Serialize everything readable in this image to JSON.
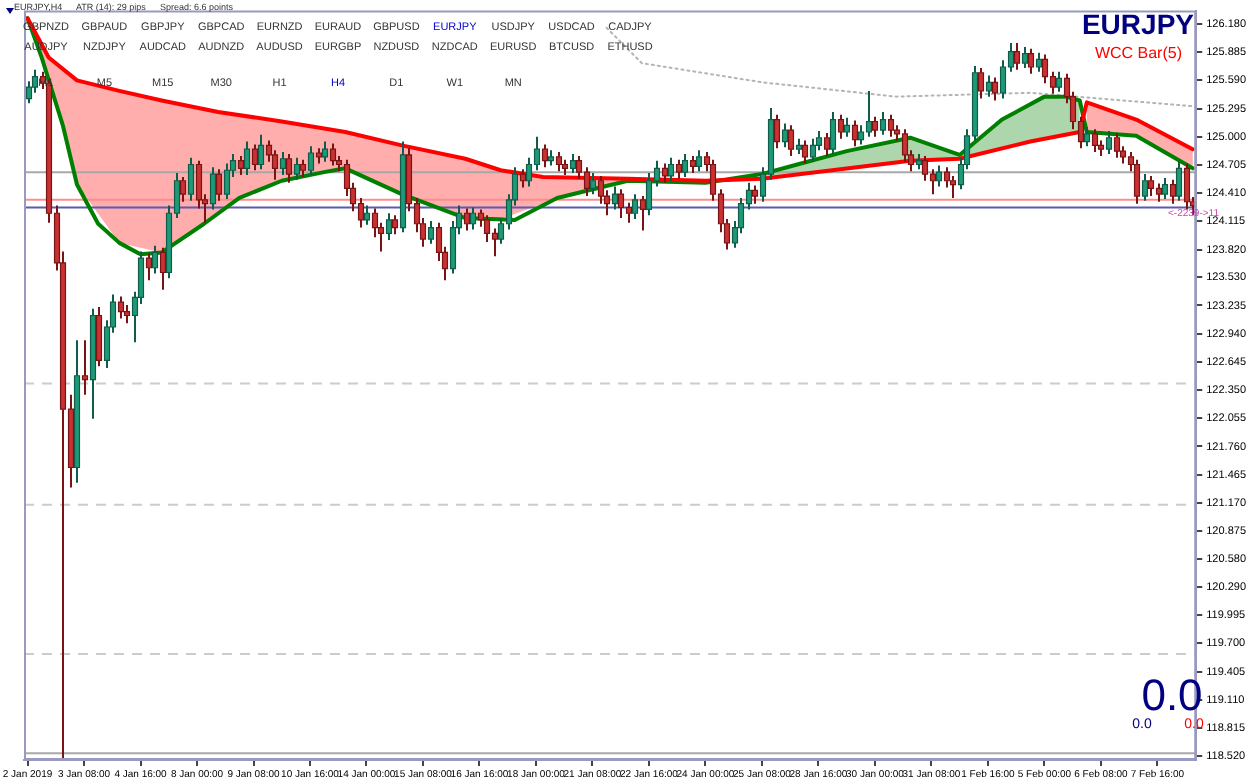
{
  "chart_data": {
    "type": "candlestick",
    "title": "EURJPY",
    "subtitle": "WCC Bar(5)",
    "categories": [
      "2 Jan 2019",
      null,
      null,
      null,
      null,
      null,
      null,
      null,
      "3 Jan 08:00",
      null,
      null,
      null,
      null,
      null,
      null,
      null,
      "4 Jan 16:00",
      null,
      null,
      null,
      null,
      null,
      null,
      null,
      "8 Jan 00:00",
      null,
      null,
      null,
      null,
      null,
      null,
      null,
      "9 Jan 08:00",
      null,
      null,
      null,
      null,
      null,
      null,
      null,
      "10 Jan 16:00",
      null,
      null,
      null,
      null,
      null,
      null,
      null,
      "14 Jan 00:00",
      null,
      null,
      null,
      null,
      null,
      null,
      null,
      "15 Jan 08:00",
      null,
      null,
      null,
      null,
      null,
      null,
      null,
      "16 Jan 16:00",
      null,
      null,
      null,
      null,
      null,
      null,
      null,
      "18 Jan 00:00",
      null,
      null,
      null,
      null,
      null,
      null,
      null,
      "21 Jan 08:00",
      null,
      null,
      null,
      null,
      null,
      null,
      null,
      "22 Jan 16:00",
      null,
      null,
      null,
      null,
      null,
      null,
      null,
      "24 Jan 00:00",
      null,
      null,
      null,
      null,
      null,
      null,
      null,
      "25 Jan 08:00",
      null,
      null,
      null,
      null,
      null,
      null,
      null,
      "28 Jan 16:00",
      null,
      null,
      null,
      null,
      null,
      null,
      null,
      "30 Jan 00:00",
      null,
      null,
      null,
      null,
      null,
      null,
      null,
      "31 Jan 08:00",
      null,
      null,
      null,
      null,
      null,
      null,
      null,
      "1 Feb 16:00",
      null,
      null,
      null,
      null,
      null,
      null,
      null,
      "5 Feb 00:00",
      null,
      null,
      null,
      null,
      null,
      null,
      null,
      "6 Feb 08:00",
      null,
      null,
      null,
      null,
      null,
      null,
      null,
      "7 Feb 16:00",
      null,
      null,
      null,
      null,
      null
    ],
    "ohlc": [
      [
        125.4,
        125.58,
        125.35,
        125.52
      ],
      [
        125.52,
        125.7,
        125.46,
        125.63
      ],
      [
        125.63,
        125.68,
        125.5,
        125.56
      ],
      [
        125.56,
        125.6,
        124.1,
        124.2
      ],
      [
        124.2,
        124.28,
        123.6,
        123.68
      ],
      [
        123.68,
        123.8,
        118.5,
        122.15
      ],
      [
        122.15,
        122.3,
        121.33,
        121.54
      ],
      [
        121.54,
        122.87,
        121.38,
        122.5
      ],
      [
        122.5,
        122.87,
        122.3,
        122.46
      ],
      [
        122.46,
        123.2,
        122.05,
        123.13
      ],
      [
        123.13,
        123.22,
        122.6,
        122.66
      ],
      [
        122.66,
        123.08,
        122.58,
        123.01
      ],
      [
        123.01,
        123.35,
        122.95,
        123.27
      ],
      [
        123.27,
        123.33,
        123.1,
        123.17
      ],
      [
        123.17,
        123.24,
        123.05,
        123.13
      ],
      [
        123.13,
        123.38,
        122.85,
        123.32
      ],
      [
        123.32,
        123.8,
        123.25,
        123.73
      ],
      [
        123.73,
        123.78,
        123.5,
        123.63
      ],
      [
        123.63,
        123.86,
        123.57,
        123.79
      ],
      [
        123.79,
        123.84,
        123.4,
        123.58
      ],
      [
        123.58,
        124.28,
        123.52,
        124.2
      ],
      [
        124.2,
        124.62,
        124.15,
        124.54
      ],
      [
        124.54,
        124.58,
        124.32,
        124.4
      ],
      [
        124.4,
        124.78,
        124.33,
        124.71
      ],
      [
        124.71,
        124.75,
        124.25,
        124.34
      ],
      [
        124.34,
        124.4,
        124.1,
        124.3
      ],
      [
        124.3,
        124.68,
        124.24,
        124.61
      ],
      [
        124.61,
        124.66,
        124.33,
        124.4
      ],
      [
        124.4,
        124.72,
        124.35,
        124.65
      ],
      [
        124.65,
        124.82,
        124.58,
        124.75
      ],
      [
        124.75,
        124.8,
        124.6,
        124.67
      ],
      [
        124.67,
        124.95,
        124.6,
        124.87
      ],
      [
        124.87,
        124.92,
        124.65,
        124.71
      ],
      [
        124.71,
        125.02,
        124.66,
        124.91
      ],
      [
        124.91,
        124.96,
        124.74,
        124.81
      ],
      [
        124.81,
        124.86,
        124.55,
        124.67
      ],
      [
        124.67,
        124.84,
        124.6,
        124.77
      ],
      [
        124.77,
        124.82,
        124.52,
        124.61
      ],
      [
        124.61,
        124.78,
        124.55,
        124.71
      ],
      [
        124.71,
        124.76,
        124.58,
        124.65
      ],
      [
        124.65,
        124.9,
        124.6,
        124.83
      ],
      [
        124.83,
        124.88,
        124.72,
        124.79
      ],
      [
        124.79,
        124.95,
        124.74,
        124.87
      ],
      [
        124.87,
        124.93,
        124.7,
        124.75
      ],
      [
        124.75,
        124.8,
        124.64,
        124.71
      ],
      [
        124.71,
        124.76,
        124.38,
        124.46
      ],
      [
        124.46,
        124.52,
        124.22,
        124.3
      ],
      [
        124.3,
        124.36,
        124.05,
        124.13
      ],
      [
        124.13,
        124.28,
        124.08,
        124.2
      ],
      [
        124.2,
        124.25,
        123.95,
        124.05
      ],
      [
        124.05,
        124.1,
        123.8,
        123.99
      ],
      [
        123.99,
        124.2,
        123.92,
        124.13
      ],
      [
        124.13,
        124.18,
        123.98,
        124.05
      ],
      [
        124.05,
        124.95,
        124.0,
        124.81
      ],
      [
        124.81,
        124.88,
        124.22,
        124.3
      ],
      [
        124.3,
        124.36,
        124.0,
        124.09
      ],
      [
        124.09,
        124.15,
        123.85,
        123.93
      ],
      [
        123.93,
        124.12,
        123.88,
        124.05
      ],
      [
        124.05,
        124.1,
        123.7,
        123.79
      ],
      [
        123.79,
        123.85,
        123.5,
        123.62
      ],
      [
        123.62,
        124.12,
        123.57,
        124.05
      ],
      [
        124.05,
        124.28,
        123.98,
        124.2
      ],
      [
        124.2,
        124.25,
        124.02,
        124.09
      ],
      [
        124.09,
        124.26,
        124.03,
        124.2
      ],
      [
        124.2,
        124.24,
        124.06,
        124.13
      ],
      [
        124.13,
        124.18,
        123.9,
        123.99
      ],
      [
        123.99,
        124.04,
        123.75,
        123.93
      ],
      [
        123.93,
        124.15,
        123.88,
        124.09
      ],
      [
        124.09,
        124.4,
        124.03,
        124.34
      ],
      [
        124.34,
        124.68,
        124.28,
        124.61
      ],
      [
        124.61,
        124.66,
        124.47,
        124.54
      ],
      [
        124.54,
        124.78,
        124.48,
        124.71
      ],
      [
        124.71,
        125.0,
        124.65,
        124.87
      ],
      [
        124.87,
        124.92,
        124.68,
        124.75
      ],
      [
        124.75,
        124.86,
        124.7,
        124.79
      ],
      [
        124.79,
        124.84,
        124.64,
        124.71
      ],
      [
        124.71,
        124.76,
        124.6,
        124.67
      ],
      [
        124.67,
        124.82,
        124.62,
        124.75
      ],
      [
        124.75,
        124.8,
        124.56,
        124.63
      ],
      [
        124.63,
        124.68,
        124.38,
        124.46
      ],
      [
        124.46,
        124.62,
        124.4,
        124.54
      ],
      [
        124.54,
        124.59,
        124.3,
        124.38
      ],
      [
        124.38,
        124.44,
        124.18,
        124.3
      ],
      [
        124.3,
        124.48,
        124.24,
        124.4
      ],
      [
        124.4,
        124.45,
        124.15,
        124.26
      ],
      [
        124.26,
        124.31,
        124.1,
        124.2
      ],
      [
        124.2,
        124.4,
        124.14,
        124.34
      ],
      [
        124.34,
        124.38,
        124.02,
        124.24
      ],
      [
        124.24,
        124.62,
        124.18,
        124.54
      ],
      [
        124.54,
        124.75,
        124.48,
        124.67
      ],
      [
        124.67,
        124.72,
        124.52,
        124.59
      ],
      [
        124.59,
        124.78,
        124.53,
        124.71
      ],
      [
        124.71,
        124.76,
        124.56,
        124.63
      ],
      [
        124.63,
        124.82,
        124.58,
        124.75
      ],
      [
        124.75,
        124.8,
        124.62,
        124.69
      ],
      [
        124.69,
        124.86,
        124.64,
        124.79
      ],
      [
        124.79,
        124.84,
        124.64,
        124.71
      ],
      [
        124.71,
        124.76,
        124.33,
        124.4
      ],
      [
        124.4,
        124.45,
        124.0,
        124.09
      ],
      [
        124.09,
        124.14,
        123.82,
        123.89
      ],
      [
        123.89,
        124.12,
        123.84,
        124.05
      ],
      [
        124.05,
        124.36,
        123.99,
        124.3
      ],
      [
        124.3,
        124.52,
        124.24,
        124.44
      ],
      [
        124.44,
        124.49,
        124.3,
        124.38
      ],
      [
        124.38,
        124.68,
        124.32,
        124.61
      ],
      [
        124.61,
        125.3,
        124.55,
        125.18
      ],
      [
        125.18,
        125.23,
        124.88,
        124.95
      ],
      [
        124.95,
        125.14,
        124.89,
        125.07
      ],
      [
        125.07,
        125.12,
        124.8,
        124.87
      ],
      [
        124.87,
        124.98,
        124.82,
        124.91
      ],
      [
        124.91,
        124.96,
        124.72,
        124.79
      ],
      [
        124.79,
        124.98,
        124.74,
        124.91
      ],
      [
        124.91,
        125.06,
        124.86,
        124.99
      ],
      [
        124.99,
        125.04,
        124.8,
        124.87
      ],
      [
        124.87,
        125.26,
        124.82,
        125.18
      ],
      [
        125.18,
        125.23,
        124.98,
        125.05
      ],
      [
        125.05,
        125.2,
        125.0,
        125.12
      ],
      [
        125.12,
        125.17,
        124.9,
        124.97
      ],
      [
        124.97,
        125.12,
        124.92,
        125.05
      ],
      [
        125.05,
        125.48,
        125.0,
        125.16
      ],
      [
        125.16,
        125.21,
        125.0,
        125.07
      ],
      [
        125.07,
        125.26,
        125.02,
        125.18
      ],
      [
        125.18,
        125.23,
        125.0,
        125.07
      ],
      [
        125.07,
        125.12,
        124.96,
        125.03
      ],
      [
        125.03,
        125.08,
        124.74,
        124.81
      ],
      [
        124.81,
        124.86,
        124.64,
        124.71
      ],
      [
        124.71,
        124.82,
        124.66,
        124.75
      ],
      [
        124.75,
        124.8,
        124.54,
        124.61
      ],
      [
        124.61,
        124.66,
        124.4,
        124.54
      ],
      [
        124.54,
        124.7,
        124.48,
        124.63
      ],
      [
        124.63,
        124.68,
        124.47,
        124.54
      ],
      [
        124.54,
        124.59,
        124.36,
        124.5
      ],
      [
        124.5,
        124.78,
        124.45,
        124.71
      ],
      [
        124.71,
        125.08,
        124.66,
        125.01
      ],
      [
        125.01,
        125.74,
        124.96,
        125.67
      ],
      [
        125.67,
        125.72,
        125.4,
        125.48
      ],
      [
        125.48,
        125.64,
        125.42,
        125.57
      ],
      [
        125.57,
        125.62,
        125.38,
        125.46
      ],
      [
        125.46,
        125.8,
        125.4,
        125.73
      ],
      [
        125.73,
        125.98,
        125.68,
        125.89
      ],
      [
        125.89,
        125.98,
        125.7,
        125.77
      ],
      [
        125.77,
        125.94,
        125.72,
        125.87
      ],
      [
        125.87,
        125.92,
        125.66,
        125.73
      ],
      [
        125.73,
        125.88,
        125.68,
        125.81
      ],
      [
        125.81,
        125.86,
        125.56,
        125.63
      ],
      [
        125.63,
        125.68,
        125.45,
        125.52
      ],
      [
        125.52,
        125.68,
        125.47,
        125.61
      ],
      [
        125.61,
        125.66,
        125.35,
        125.42
      ],
      [
        125.42,
        125.47,
        125.08,
        125.16
      ],
      [
        125.16,
        125.21,
        124.88,
        124.95
      ],
      [
        124.95,
        125.1,
        124.9,
        125.03
      ],
      [
        125.03,
        125.08,
        124.84,
        124.91
      ],
      [
        124.91,
        124.96,
        124.8,
        124.87
      ],
      [
        124.87,
        125.06,
        124.82,
        124.99
      ],
      [
        124.99,
        125.04,
        124.78,
        124.85
      ],
      [
        124.85,
        124.9,
        124.72,
        124.79
      ],
      [
        124.79,
        124.84,
        124.64,
        124.71
      ],
      [
        124.71,
        124.76,
        124.3,
        124.38
      ],
      [
        124.38,
        124.61,
        124.33,
        124.54
      ],
      [
        124.54,
        124.59,
        124.38,
        124.46
      ],
      [
        124.46,
        124.51,
        124.32,
        124.4
      ],
      [
        124.4,
        124.57,
        124.35,
        124.5
      ],
      [
        124.5,
        124.55,
        124.3,
        124.38
      ],
      [
        124.38,
        124.74,
        124.33,
        124.67
      ],
      [
        124.67,
        124.72,
        124.24,
        124.32
      ],
      [
        124.32,
        124.37,
        124.18,
        124.28
      ]
    ],
    "series": [
      {
        "type": "line",
        "color": "#ff0000",
        "upper": [
          126.24,
          null,
          null,
          125.83,
          null,
          null,
          null,
          125.59,
          null,
          null,
          null,
          null,
          null,
          125.48,
          null,
          null,
          null,
          null,
          null,
          125.38,
          null,
          null,
          null,
          null,
          null,
          125.29,
          null,
          null,
          null,
          null,
          125.22,
          null,
          null,
          null,
          null,
          null,
          125.16,
          null,
          null,
          null,
          null,
          null,
          null,
          null,
          null,
          125.05,
          null,
          null,
          null,
          null,
          null,
          null,
          null,
          124.91,
          null,
          null,
          null,
          null,
          null,
          null,
          null,
          null,
          124.77,
          null,
          null,
          null,
          null,
          124.65,
          null,
          null,
          null,
          null,
          null,
          124.58,
          null,
          null,
          null,
          null,
          null,
          null,
          null,
          null,
          null,
          null,
          null,
          124.56,
          null,
          null,
          null,
          null,
          null,
          null,
          null,
          null,
          null,
          null,
          124.54,
          null,
          null,
          null,
          null,
          null,
          null,
          null,
          null,
          null,
          null,
          null,
          null,
          null,
          null,
          null,
          null,
          null,
          null,
          null,
          null,
          null,
          null,
          null,
          null,
          null,
          null,
          null,
          null,
          null,
          null,
          null,
          null,
          null,
          null,
          null,
          null,
          null,
          null,
          null,
          null,
          null,
          null,
          null,
          null,
          null,
          null,
          null,
          null,
          null,
          null,
          null,
          null,
          null,
          125.36,
          null,
          null,
          null,
          null,
          null,
          null,
          125.18,
          null,
          null,
          null,
          null,
          null,
          null,
          null,
          124.87
        ],
        "lower": [
          126.24,
          null,
          null,
          125.6,
          null,
          null,
          null,
          124.5,
          null,
          null,
          null,
          null,
          null,
          123.89,
          null,
          null,
          null,
          null,
          null,
          123.79,
          null,
          null,
          null,
          null,
          null,
          124.09,
          null,
          null,
          null,
          null,
          124.36,
          null,
          null,
          null,
          null,
          null,
          124.54,
          null,
          null,
          null,
          null,
          null,
          null,
          null,
          null,
          124.67,
          null,
          null,
          null,
          null,
          null,
          null,
          null,
          124.4,
          null,
          null,
          null,
          null,
          null,
          null,
          null,
          null,
          124.15,
          null,
          null,
          null,
          null,
          124.14,
          null,
          null,
          null,
          null,
          null,
          124.3,
          null,
          null,
          null,
          null,
          null,
          null,
          null,
          null,
          null,
          null,
          null,
          124.54,
          null,
          null,
          null,
          null,
          null,
          null,
          null,
          null,
          null,
          null,
          124.52,
          null,
          null,
          null,
          null,
          null,
          null,
          null,
          null,
          null,
          null,
          null,
          null,
          null,
          null,
          null,
          null,
          null,
          null,
          null,
          null,
          null,
          null,
          null,
          null,
          null,
          null,
          null,
          null,
          null,
          null,
          null,
          null,
          null,
          null,
          null,
          null,
          null,
          null,
          null,
          null,
          null,
          null,
          null,
          null,
          null,
          null,
          null,
          null,
          null,
          null,
          null,
          null,
          null,
          125.05,
          null,
          null,
          null,
          null,
          null,
          null,
          125.01,
          null,
          null,
          null,
          null,
          null,
          null,
          null,
          124.67
        ],
        "values": [
          126.24,
          null,
          null,
          125.83,
          null,
          null,
          null,
          125.59,
          null,
          null,
          null,
          null,
          null,
          125.48,
          null,
          null,
          null,
          null,
          null,
          125.38,
          null,
          null,
          null,
          null,
          null,
          null,
          null,
          125.26,
          null,
          null,
          null,
          null,
          null,
          null,
          null,
          null,
          125.16,
          null,
          null,
          null,
          null,
          null,
          null,
          null,
          null,
          125.05,
          null,
          null,
          null,
          null,
          null,
          null,
          null,
          124.91,
          null,
          null,
          null,
          null,
          null,
          null,
          null,
          null,
          124.77,
          null,
          null,
          null,
          null,
          124.65,
          null,
          null,
          null,
          null,
          null,
          124.58,
          null,
          null,
          null,
          null,
          null,
          null,
          null,
          null,
          null,
          null,
          null,
          124.56,
          null,
          null,
          null,
          null,
          null,
          null,
          null,
          null,
          null,
          null,
          124.54,
          null,
          null,
          null,
          null,
          null,
          null,
          null,
          124.56,
          null,
          null,
          null,
          null,
          null,
          null,
          null,
          null,
          null,
          null,
          null,
          null,
          null,
          null,
          null,
          null,
          null,
          null,
          null,
          null,
          124.75,
          null,
          null,
          null,
          null,
          null,
          null,
          124.77,
          null,
          null,
          null,
          null,
          null,
          null,
          null,
          null,
          null,
          124.95,
          null,
          null,
          null,
          null,
          null,
          null,
          125.05,
          125.36,
          null,
          null,
          null,
          null,
          null,
          null,
          125.18,
          null,
          null,
          null,
          null,
          null,
          null,
          null,
          124.87
        ]
      },
      {
        "type": "line",
        "color": "#008000",
        "upper": [
          null,
          null,
          null,
          null,
          null,
          null,
          null,
          null,
          null,
          null,
          null,
          null,
          null,
          null,
          null,
          null,
          null,
          null,
          null,
          null,
          null,
          null,
          null,
          null,
          null,
          null,
          null,
          null,
          null,
          null,
          null,
          null,
          null,
          null,
          null,
          null,
          null,
          null,
          null,
          null,
          null,
          null,
          null,
          null,
          null,
          null,
          null,
          null,
          null,
          null,
          null,
          null,
          null,
          null,
          null,
          null,
          null,
          null,
          null,
          null,
          null,
          null,
          null,
          null,
          null,
          null,
          null,
          null,
          null,
          null,
          null,
          null,
          null,
          null,
          null,
          null,
          null,
          null,
          null,
          null,
          null,
          null,
          null,
          null,
          null,
          null,
          null,
          null,
          null,
          null,
          null,
          null,
          null,
          null,
          null,
          null,
          null,
          null,
          null,
          null,
          null,
          null,
          null,
          null,
          124.61,
          null,
          null,
          null,
          null,
          124.71,
          null,
          null,
          null,
          null,
          null,
          null,
          124.85,
          null,
          null,
          null,
          null,
          null,
          null,
          null,
          null,
          124.99,
          null,
          null,
          null,
          null,
          null,
          null,
          124.81,
          null,
          null,
          null,
          null,
          null,
          125.18,
          null,
          null,
          null,
          null,
          null,
          125.42,
          null,
          null,
          null,
          null,
          125.38,
          null,
          null,
          null,
          null,
          null,
          null,
          null,
          null,
          null,
          null,
          null,
          null,
          null,
          null,
          null,
          null
        ],
        "lower": [
          null,
          null,
          null,
          null,
          null,
          null,
          null,
          null,
          null,
          null,
          null,
          null,
          null,
          null,
          null,
          null,
          null,
          null,
          null,
          null,
          null,
          null,
          null,
          null,
          null,
          null,
          null,
          null,
          null,
          null,
          null,
          null,
          null,
          null,
          null,
          null,
          null,
          null,
          null,
          null,
          null,
          null,
          null,
          null,
          null,
          null,
          null,
          null,
          null,
          null,
          null,
          null,
          null,
          null,
          null,
          null,
          null,
          null,
          null,
          null,
          null,
          null,
          null,
          null,
          null,
          null,
          null,
          null,
          null,
          null,
          null,
          null,
          null,
          null,
          null,
          null,
          null,
          null,
          null,
          null,
          null,
          null,
          null,
          null,
          null,
          null,
          null,
          null,
          null,
          null,
          null,
          null,
          null,
          null,
          null,
          null,
          null,
          null,
          null,
          null,
          null,
          null,
          null,
          null,
          124.56,
          null,
          null,
          null,
          null,
          124.6,
          null,
          null,
          null,
          null,
          null,
          null,
          124.66,
          null,
          null,
          null,
          null,
          null,
          null,
          null,
          null,
          124.75,
          null,
          null,
          null,
          null,
          null,
          null,
          124.77,
          null,
          null,
          null,
          null,
          null,
          124.88,
          null,
          null,
          null,
          null,
          null,
          124.99,
          null,
          null,
          null,
          null,
          125.05,
          null,
          null,
          null,
          null,
          null,
          null,
          null,
          null,
          null,
          null,
          null,
          null,
          null,
          null,
          null,
          null
        ],
        "values": [
          126.24,
          null,
          125.83,
          null,
          null,
          125.12,
          null,
          124.5,
          null,
          null,
          124.09,
          null,
          null,
          123.89,
          null,
          null,
          123.77,
          null,
          null,
          123.79,
          null,
          null,
          null,
          null,
          null,
          124.09,
          null,
          null,
          null,
          null,
          124.36,
          null,
          null,
          null,
          null,
          null,
          124.54,
          null,
          null,
          null,
          null,
          null,
          124.63,
          null,
          null,
          124.67,
          null,
          null,
          null,
          null,
          null,
          null,
          null,
          124.4,
          null,
          null,
          null,
          null,
          null,
          null,
          null,
          null,
          124.15,
          null,
          null,
          null,
          null,
          null,
          null,
          124.13,
          null,
          null,
          null,
          null,
          null,
          124.36,
          null,
          null,
          null,
          null,
          null,
          null,
          null,
          null,
          null,
          124.54,
          null,
          null,
          null,
          null,
          null,
          null,
          null,
          null,
          null,
          null,
          124.52,
          null,
          null,
          null,
          null,
          null,
          null,
          null,
          124.61,
          null,
          null,
          null,
          null,
          124.71,
          null,
          null,
          null,
          null,
          null,
          null,
          124.85,
          null,
          null,
          null,
          null,
          null,
          null,
          null,
          null,
          124.99,
          null,
          null,
          null,
          null,
          null,
          null,
          124.81,
          null,
          null,
          null,
          null,
          null,
          125.18,
          null,
          null,
          null,
          null,
          null,
          125.42,
          null,
          null,
          125.42,
          null,
          125.38,
          125.05,
          null,
          null,
          null,
          null,
          null,
          null,
          125.01,
          null,
          null,
          null,
          null,
          null,
          null,
          null,
          124.67
        ]
      },
      {
        "type": "line",
        "color": "#b4b4b4",
        "line_style": "dotted",
        "values": [
          null,
          null,
          null,
          null,
          null,
          null,
          null,
          null,
          null,
          null,
          null,
          null,
          null,
          null,
          null,
          null,
          null,
          null,
          null,
          null,
          null,
          null,
          null,
          null,
          null,
          null,
          null,
          null,
          null,
          null,
          null,
          null,
          null,
          null,
          null,
          null,
          null,
          null,
          null,
          null,
          null,
          null,
          null,
          null,
          null,
          null,
          null,
          null,
          null,
          null,
          null,
          null,
          null,
          null,
          null,
          null,
          null,
          null,
          null,
          null,
          null,
          null,
          null,
          null,
          null,
          null,
          null,
          null,
          null,
          null,
          null,
          null,
          null,
          null,
          null,
          null,
          null,
          null,
          null,
          null,
          null,
          null,
          126.14,
          null,
          null,
          null,
          null,
          125.77,
          null,
          null,
          null,
          null,
          null,
          null,
          null,
          null,
          null,
          null,
          null,
          null,
          null,
          null,
          null,
          null,
          125.57,
          null,
          null,
          null,
          null,
          null,
          null,
          null,
          null,
          null,
          null,
          null,
          null,
          null,
          null,
          null,
          null,
          null,
          null,
          125.42,
          null,
          null,
          null,
          null,
          null,
          null,
          null,
          null,
          null,
          null,
          null,
          null,
          null,
          null,
          null,
          null,
          null,
          null,
          125.46,
          null,
          null,
          null,
          null,
          null,
          null,
          null,
          null,
          null,
          null,
          null,
          null,
          null,
          null,
          null,
          null,
          null,
          null,
          null,
          null,
          null,
          null,
          125.32
        ]
      }
    ],
    "ylim": [
      118.48,
      126.32
    ],
    "yticks": [
      {
        "value": 126.18,
        "label": "126.180"
      },
      {
        "value": 125.885,
        "label": "125.885"
      },
      {
        "value": 125.59,
        "label": "125.590"
      },
      {
        "value": 125.295,
        "label": "125.295"
      },
      {
        "value": 125.0,
        "label": "125.000"
      },
      {
        "value": 124.705,
        "label": "124.705"
      },
      {
        "value": 124.41,
        "label": "124.410"
      },
      {
        "value": 124.115,
        "label": "124.115"
      },
      {
        "value": 123.82,
        "label": "123.820"
      },
      {
        "value": 123.53,
        "label": "123.530"
      },
      {
        "value": 123.235,
        "label": "123.235"
      },
      {
        "value": 122.94,
        "label": "122.940"
      },
      {
        "value": 122.645,
        "label": "122.645"
      },
      {
        "value": 122.35,
        "label": "122.350"
      },
      {
        "value": 122.055,
        "label": "122.055"
      },
      {
        "value": 121.76,
        "label": "121.760"
      },
      {
        "value": 121.465,
        "label": "121.465"
      },
      {
        "value": 121.17,
        "label": "121.170"
      },
      {
        "value": 120.875,
        "label": "120.875"
      },
      {
        "value": 120.58,
        "label": "120.580"
      },
      {
        "value": 120.29,
        "label": "120.290"
      },
      {
        "value": 119.995,
        "label": "119.995"
      },
      {
        "value": 119.7,
        "label": "119.700"
      },
      {
        "value": 119.405,
        "label": "119.405"
      },
      {
        "value": 119.11,
        "label": "119.110"
      },
      {
        "value": 118.815,
        "label": "118.815"
      },
      {
        "value": 118.52,
        "label": "118.520"
      }
    ],
    "ref_lines": [
      {
        "axis": "y",
        "value": 124.63,
        "color": "#a8a8a8",
        "line_style": "solid"
      },
      {
        "axis": "y",
        "value": 124.34,
        "color": "#ff8c8c",
        "line_style": "solid"
      },
      {
        "axis": "y",
        "value": 124.26,
        "color": "#5a5ab4",
        "line_style": "solid"
      },
      {
        "axis": "y",
        "value": 122.42,
        "color": "#cccccc",
        "line_style": "dashed"
      },
      {
        "axis": "y",
        "value": 121.15,
        "color": "#cccccc",
        "line_style": "dashed"
      },
      {
        "axis": "y",
        "value": 119.59,
        "color": "#cccccc",
        "line_style": "dashed"
      },
      {
        "axis": "y",
        "value": 118.55,
        "color": "#a8a8a8",
        "line_style": "solid"
      }
    ],
    "annotations": [
      "EURJPY,H4",
      "ATR (14): 29 pips",
      "Spread: 6.6 points",
      "GBPNZD",
      "GBPAUD",
      "GBPJPY",
      "GBPCAD",
      "EURNZD",
      "EURAUD",
      "GBPUSD",
      "EURJPY",
      "USDJPY",
      "USDCAD",
      "CADJPY",
      "AUDJPY",
      "NZDJPY",
      "AUDCAD",
      "AUDNZD",
      "AUDUSD",
      "EURGBP",
      "NZDUSD",
      "NZDCAD",
      "EURUSD",
      "BTCUSD",
      "ETHUSD",
      "M1",
      "M5",
      "M15",
      "M30",
      "H1",
      "H4",
      "D1",
      "W1",
      "MN",
      "<-2239->11",
      "0.0",
      "0.0",
      "0.0"
    ]
  }
}
